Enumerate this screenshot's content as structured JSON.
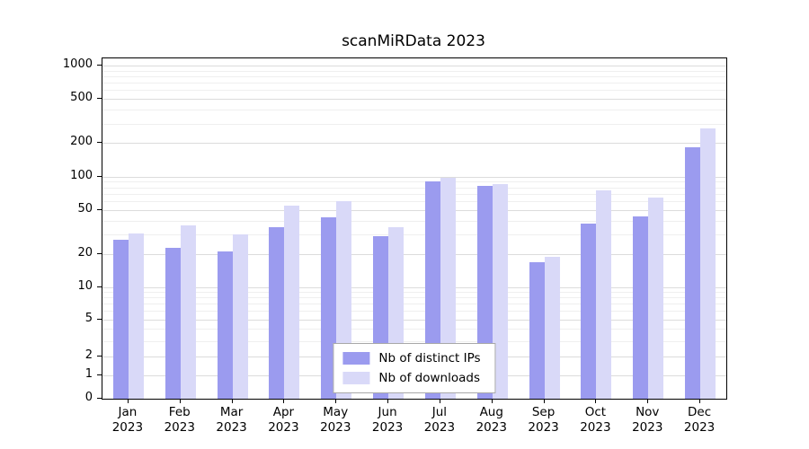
{
  "title": "scanMiRData 2023",
  "chart_data": {
    "type": "bar",
    "title": "scanMiRData 2023",
    "y_scale": "pseudo-log (asinh)",
    "y_max": 1160,
    "grid": true,
    "legend_position": "lower center",
    "categories": [
      "Jan",
      "Feb",
      "Mar",
      "Apr",
      "May",
      "Jun",
      "Jul",
      "Aug",
      "Sep",
      "Oct",
      "Nov",
      "Dec"
    ],
    "x_year": "2023",
    "series": [
      {
        "name": "Nb of distinct IPs",
        "color": "#9b9bef",
        "values": [
          27,
          23,
          21,
          35,
          43,
          29,
          90,
          82,
          17,
          38,
          44,
          185
        ]
      },
      {
        "name": "Nb of downloads",
        "color": "#d9d9f8",
        "values": [
          31,
          36,
          30,
          55,
          60,
          35,
          98,
          85,
          19,
          75,
          65,
          270
        ]
      }
    ],
    "y_ticks": [
      0,
      1,
      2,
      5,
      10,
      20,
      50,
      100,
      200,
      500,
      1000
    ],
    "y_minor_ticks": [
      3,
      4,
      6,
      7,
      8,
      9,
      30,
      40,
      60,
      70,
      80,
      90,
      300,
      400,
      600,
      700,
      800,
      900
    ],
    "colors": {
      "grid_major": "#dcdcdc",
      "grid_minor": "#efefef",
      "axis": "#000000",
      "background": "#ffffff"
    }
  }
}
